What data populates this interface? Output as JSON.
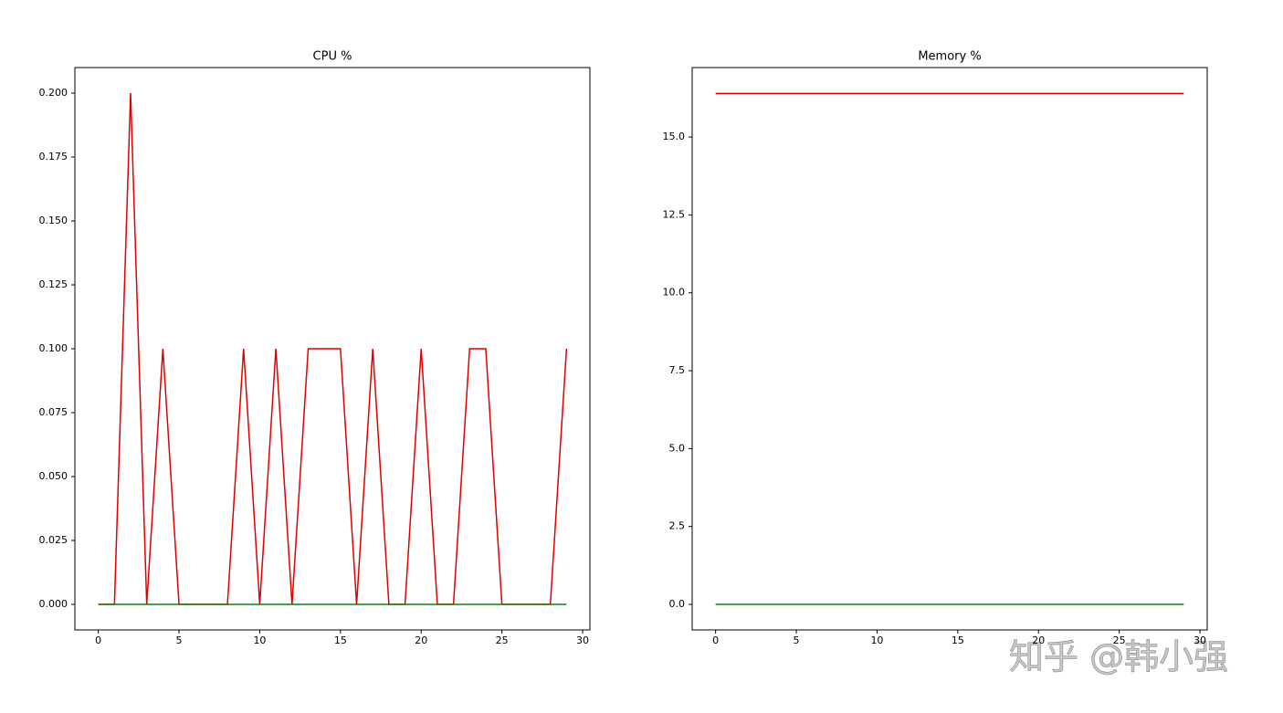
{
  "chart_data": [
    {
      "type": "line",
      "title": "CPU %",
      "x": [
        0,
        1,
        2,
        3,
        4,
        5,
        6,
        7,
        8,
        9,
        10,
        11,
        12,
        13,
        14,
        15,
        16,
        17,
        18,
        19,
        20,
        21,
        22,
        23,
        24,
        25,
        26,
        27,
        28,
        29
      ],
      "series": [
        {
          "color": "#e00000",
          "values": [
            0,
            0,
            0.2,
            0,
            0.1,
            0,
            0,
            0,
            0,
            0.1,
            0,
            0.1,
            0,
            0.1,
            0.1,
            0.1,
            0,
            0.1,
            0,
            0,
            0.1,
            0,
            0,
            0.1,
            0.1,
            0,
            0,
            0,
            0,
            0.1
          ]
        },
        {
          "color": "#108010",
          "values": [
            0,
            0,
            0,
            0,
            0,
            0,
            0,
            0,
            0,
            0,
            0,
            0,
            0,
            0,
            0,
            0,
            0,
            0,
            0,
            0,
            0,
            0,
            0,
            0,
            0,
            0,
            0,
            0,
            0,
            0
          ]
        }
      ],
      "xlim": [
        -1.45,
        30.45
      ],
      "xticks": [
        0,
        5,
        10,
        15,
        20,
        25,
        30
      ],
      "ylim": [
        -0.01,
        0.21
      ],
      "yticks": [
        {
          "value": 0,
          "label": "0.000"
        },
        {
          "value": 0.025,
          "label": "0.025"
        },
        {
          "value": 0.05,
          "label": "0.050"
        },
        {
          "value": 0.075,
          "label": "0.075"
        },
        {
          "value": 0.1,
          "label": "0.100"
        },
        {
          "value": 0.125,
          "label": "0.125"
        },
        {
          "value": 0.15,
          "label": "0.150"
        },
        {
          "value": 0.175,
          "label": "0.175"
        },
        {
          "value": 0.2,
          "label": "0.200"
        }
      ]
    },
    {
      "type": "line",
      "title": "Memory %",
      "x": [
        0,
        1,
        2,
        3,
        4,
        5,
        6,
        7,
        8,
        9,
        10,
        11,
        12,
        13,
        14,
        15,
        16,
        17,
        18,
        19,
        20,
        21,
        22,
        23,
        24,
        25,
        26,
        27,
        28,
        29
      ],
      "series": [
        {
          "color": "#e00000",
          "values": [
            16.4,
            16.4,
            16.4,
            16.4,
            16.4,
            16.4,
            16.4,
            16.4,
            16.4,
            16.4,
            16.4,
            16.4,
            16.4,
            16.4,
            16.4,
            16.4,
            16.4,
            16.4,
            16.4,
            16.4,
            16.4,
            16.4,
            16.4,
            16.4,
            16.4,
            16.4,
            16.4,
            16.4,
            16.4,
            16.4
          ]
        },
        {
          "color": "#108010",
          "values": [
            0,
            0,
            0,
            0,
            0,
            0,
            0,
            0,
            0,
            0,
            0,
            0,
            0,
            0,
            0,
            0,
            0,
            0,
            0,
            0,
            0,
            0,
            0,
            0,
            0,
            0,
            0,
            0,
            0,
            0
          ]
        }
      ],
      "xlim": [
        -1.45,
        30.45
      ],
      "xticks": [
        0,
        5,
        10,
        15,
        20,
        25,
        30
      ],
      "ylim": [
        -0.82,
        17.23
      ],
      "yticks": [
        {
          "value": 0,
          "label": "0.0"
        },
        {
          "value": 2.5,
          "label": "2.5"
        },
        {
          "value": 5,
          "label": "5.0"
        },
        {
          "value": 7.5,
          "label": "7.5"
        },
        {
          "value": 10,
          "label": "10.0"
        },
        {
          "value": 12.5,
          "label": "12.5"
        },
        {
          "value": 15,
          "label": "15.0"
        }
      ]
    }
  ],
  "watermark": "知乎 @韩小强"
}
